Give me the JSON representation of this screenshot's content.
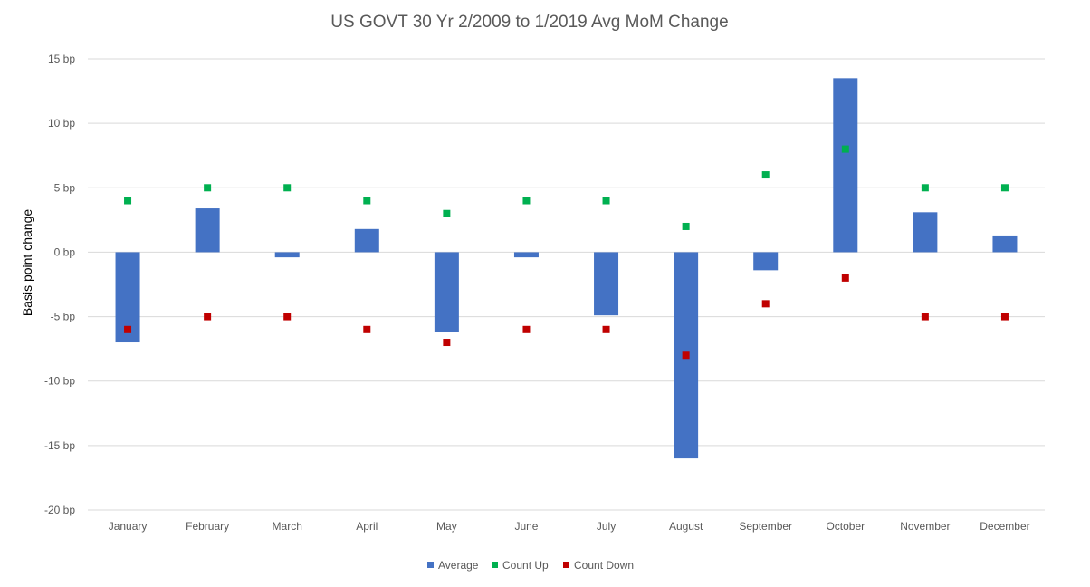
{
  "chart_data": {
    "type": "bar",
    "title": "US GOVT 30 Yr 2/2009 to 1/2019 Avg MoM Change",
    "xlabel": "",
    "ylabel": "Basis point change",
    "ylim": [
      -20,
      15
    ],
    "yticks": [
      15,
      10,
      5,
      0,
      -5,
      -10,
      -15,
      -20
    ],
    "ytick_labels": [
      "15 bp",
      "10 bp",
      "5 bp",
      "0 bp",
      "-5 bp",
      "-10 bp",
      "-15 bp",
      "-20 bp"
    ],
    "categories": [
      "January",
      "February",
      "March",
      "April",
      "May",
      "June",
      "July",
      "August",
      "September",
      "October",
      "November",
      "December"
    ],
    "series": [
      {
        "name": "Average",
        "kind": "bar",
        "color": "#4472c4",
        "values": [
          -7.0,
          3.4,
          -0.4,
          1.8,
          -6.2,
          -0.4,
          -4.9,
          -16.0,
          -1.4,
          13.5,
          3.1,
          1.3
        ]
      },
      {
        "name": "Count Up",
        "kind": "marker",
        "color": "#00b050",
        "values": [
          4,
          5,
          5,
          4,
          3,
          4,
          4,
          2,
          6,
          8,
          5,
          5
        ]
      },
      {
        "name": "Count Down",
        "kind": "marker",
        "color": "#c00000",
        "values": [
          -6,
          -5,
          -5,
          -6,
          -7,
          -6,
          -6,
          -8,
          -4,
          -2,
          -5,
          -5
        ]
      }
    ],
    "grid": true,
    "legend": "bottom-center"
  }
}
